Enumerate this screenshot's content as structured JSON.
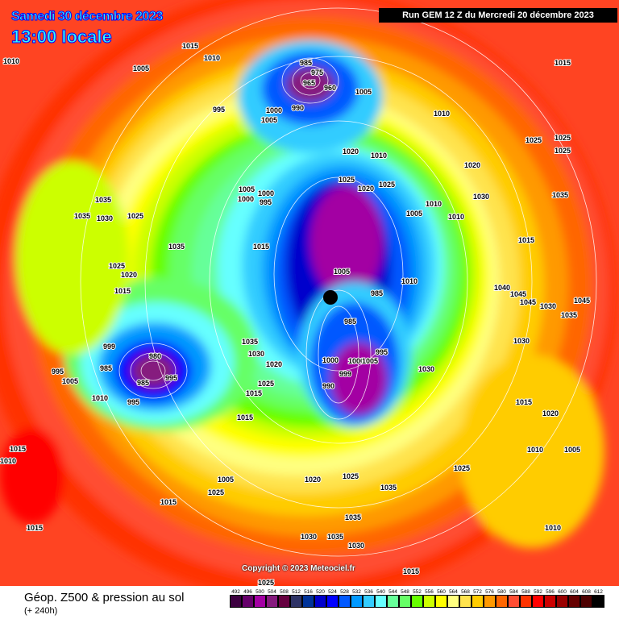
{
  "header": {
    "date": "Samedi 30 décembre 2023",
    "time": "13:00 locale",
    "run": "Run GEM 12 Z du Mercredi 20 décembre 2023"
  },
  "copyright": "Copyright © 2023 Meteociel.fr",
  "footer": {
    "product": "Géop. Z500 & pression au sol",
    "step": "(+ 240h)"
  },
  "legend": {
    "values": [
      "492",
      "496",
      "500",
      "504",
      "508",
      "512",
      "516",
      "520",
      "524",
      "528",
      "532",
      "536",
      "540",
      "544",
      "548",
      "552",
      "556",
      "560",
      "564",
      "568",
      "572",
      "576",
      "580",
      "584",
      "588",
      "592",
      "596",
      "600",
      "604",
      "608",
      "612"
    ],
    "colors": [
      "#3d0040",
      "#66006b",
      "#a300a3",
      "#861a7e",
      "#660040",
      "#2e3366",
      "#003399",
      "#0000cc",
      "#0000ff",
      "#0059ff",
      "#0099ff",
      "#33ccff",
      "#66ffff",
      "#66ff99",
      "#66ff66",
      "#66ff00",
      "#ccff00",
      "#ffff00",
      "#ffff80",
      "#ffe34d",
      "#ffcc00",
      "#ff9900",
      "#ff6600",
      "#ff4d33",
      "#ff3300",
      "#ff0000",
      "#cc0000",
      "#990000",
      "#660000",
      "#4d0000",
      "#000000"
    ]
  },
  "pressure_labels": [
    "1010",
    "1015",
    "1010",
    "1005",
    "995",
    "985",
    "975",
    "965",
    "960",
    "990",
    "1000",
    "1005",
    "1005",
    "1015",
    "1025",
    "1025",
    "1025",
    "1010",
    "1020",
    "1010",
    "1025",
    "1020",
    "1025",
    "1010",
    "1010",
    "1005",
    "1020",
    "1035",
    "1030",
    "1035",
    "1035",
    "1030",
    "1025",
    "1005",
    "1000",
    "1000",
    "995",
    "1035",
    "1015",
    "1025",
    "1020",
    "1015",
    "1005",
    "1010",
    "985",
    "985",
    "1000",
    "990",
    "980",
    "985",
    "995",
    "995",
    "995",
    "1005",
    "1010",
    "985",
    "999",
    "999",
    "1000",
    "1005",
    "995",
    "1030",
    "1035",
    "1030",
    "1020",
    "1025",
    "1015",
    "1015",
    "1015",
    "1020",
    "1015",
    "1040",
    "1045",
    "1045",
    "1030",
    "1035",
    "1045",
    "1030",
    "1025",
    "1020",
    "1025",
    "1035",
    "1035",
    "1030",
    "1035",
    "1030",
    "1025",
    "1015",
    "1015",
    "1010",
    "1005",
    "1025",
    "1015",
    "1015",
    "1010",
    "1005",
    "1010"
  ]
}
